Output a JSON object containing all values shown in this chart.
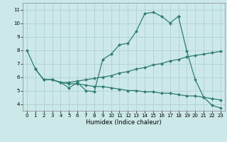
{
  "xlabel": "Humidex (Indice chaleur)",
  "bg_color": "#cce8e8",
  "line_color": "#2e7d6e",
  "series": [
    {
      "x": [
        0,
        1
      ],
      "y": [
        8.0,
        6.6
      ]
    },
    {
      "x": [
        2,
        3,
        4,
        5,
        6,
        7,
        8,
        9,
        10,
        11,
        12,
        13,
        14,
        15,
        16,
        17,
        18
      ],
      "y": [
        5.8,
        5.8,
        5.6,
        5.2,
        5.6,
        5.0,
        4.9,
        7.3,
        7.7,
        8.4,
        8.5,
        9.4,
        10.7,
        10.8,
        10.5,
        10.0,
        10.5
      ]
    },
    {
      "x": [
        18,
        19,
        20,
        21,
        22,
        23
      ],
      "y": [
        10.5,
        7.9,
        5.8,
        4.5,
        3.9,
        3.7
      ]
    },
    {
      "x": [
        1,
        2,
        3,
        4,
        5,
        6,
        7,
        8,
        9,
        10,
        11,
        12,
        13,
        14,
        15,
        16,
        17,
        18,
        19,
        20,
        21,
        22,
        23
      ],
      "y": [
        6.6,
        5.8,
        5.8,
        5.6,
        5.6,
        5.7,
        5.8,
        5.9,
        6.0,
        6.1,
        6.3,
        6.4,
        6.6,
        6.7,
        6.9,
        7.0,
        7.2,
        7.3,
        7.5,
        7.6,
        7.7,
        7.8,
        7.9
      ]
    },
    {
      "x": [
        1,
        2,
        3,
        4,
        5,
        6,
        7,
        8,
        9,
        10,
        11,
        12,
        13,
        14,
        15,
        16,
        17,
        18,
        19,
        20,
        21,
        22,
        23
      ],
      "y": [
        6.6,
        5.8,
        5.8,
        5.6,
        5.5,
        5.5,
        5.4,
        5.3,
        5.3,
        5.2,
        5.1,
        5.0,
        5.0,
        4.9,
        4.9,
        4.8,
        4.8,
        4.7,
        4.6,
        4.6,
        4.5,
        4.4,
        4.3
      ]
    }
  ],
  "ylim": [
    3.5,
    11.5
  ],
  "yticks": [
    4,
    5,
    6,
    7,
    8,
    9,
    10,
    11
  ],
  "xlim": [
    -0.5,
    23.5
  ],
  "xticks": [
    0,
    1,
    2,
    3,
    4,
    5,
    6,
    7,
    8,
    9,
    10,
    11,
    12,
    13,
    14,
    15,
    16,
    17,
    18,
    19,
    20,
    21,
    22,
    23
  ],
  "grid_color": "#aacece",
  "marker": "D",
  "markersize": 2.0,
  "linewidth": 0.9,
  "tick_fontsize": 5.0,
  "xlabel_fontsize": 6.0
}
